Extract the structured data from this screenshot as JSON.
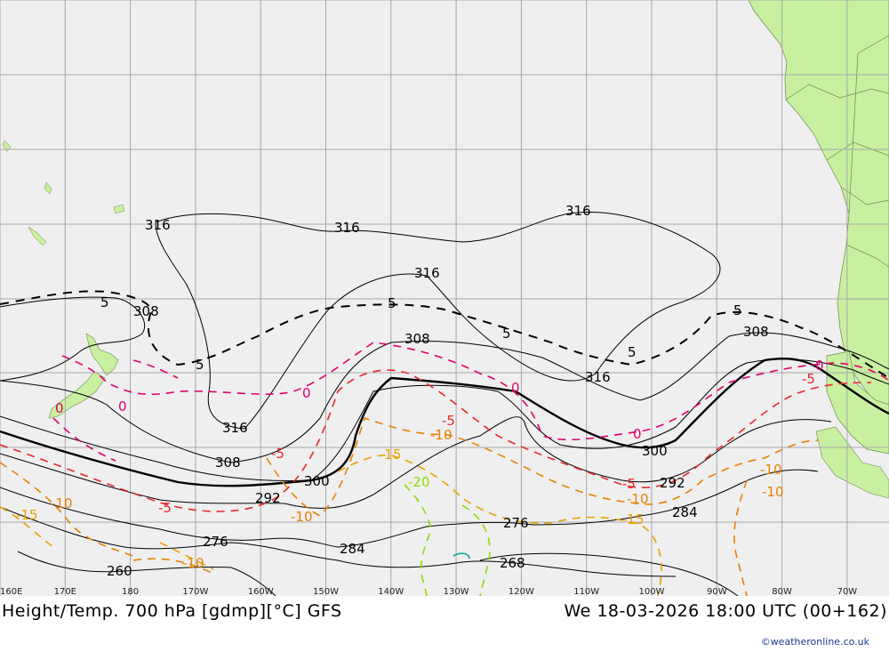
{
  "footer": {
    "title": "Height/Temp. 700 hPa [gdmp][°C] GFS",
    "datetime": "We 18-03-2026 18:00 UTC (00+162)",
    "credit": "©weatheronline.co.uk"
  },
  "longitude_ticks": [
    "160E",
    "170E",
    "180",
    "170W",
    "160W",
    "150W",
    "140W",
    "130W",
    "120W",
    "110W",
    "100W",
    "90W",
    "80W",
    "70W"
  ],
  "height_labels": {
    "h316": "316",
    "h308": "308",
    "h300": "300",
    "h292": "292",
    "h284": "284",
    "h276": "276",
    "h268": "268",
    "h260": "260"
  },
  "temp_labels": {
    "t5": "5",
    "t0": "0",
    "tm5": "-5",
    "tm10": "-10",
    "tm15": "-15",
    "tm20": "-20"
  },
  "colors": {
    "ocean": "#efefef",
    "land": "#c8f0a0",
    "grid": "#a8a8a8",
    "height": "#000000",
    "temp_pos": "#000000",
    "temp_zero": "#e0006e",
    "temp_m5": "#e8282c",
    "temp_m10": "#e88000",
    "temp_m15": "#e8a000",
    "temp_m20": "#8adc00",
    "credit": "#1a3a8a"
  }
}
